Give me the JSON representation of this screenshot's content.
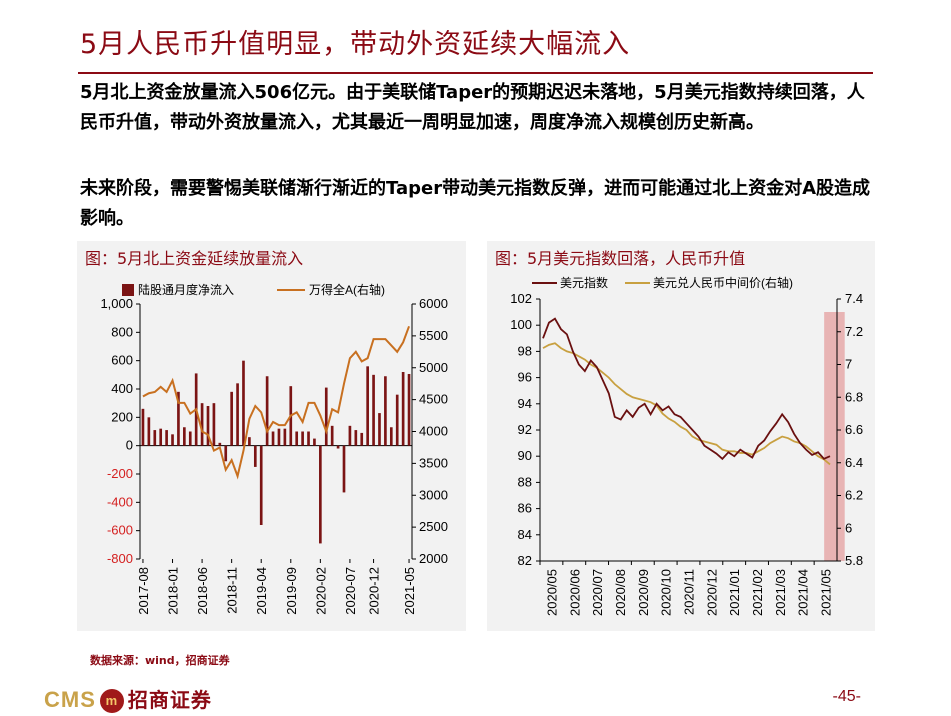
{
  "title": "5月人民币升值明显，带动外资延续大幅流入",
  "paragraphs": [
    "5月北上资金放量流入506亿元。由于美联储Taper的预期迟迟未落地，5月美元指数持续回落，人民币升值，带动外资放量流入，尤其最近一周明显加速，周度净流入规模创历史新高。",
    "未来阶段，需要警惕美联储渐行渐近的Taper带动美元指数反弹，进而可能通过北上资金对A股造成影响。"
  ],
  "source": "数据来源：wind，招商证券",
  "footer": {
    "logo_text": "CMS",
    "logo_badge": "m",
    "logo_cn": "招商证券",
    "page": "-45-"
  },
  "colors": {
    "accent": "#8b0a14",
    "bar": "#7b1414",
    "line_orange": "#c87020",
    "line_usd": "#6a1010",
    "line_cny": "#c8a040",
    "highlight": "#e8b4b4"
  },
  "chart_data": [
    {
      "type": "bar",
      "panel_title": "图：5月北上资金延续放量流入",
      "legend": [
        "陆股通月度净流入",
        "万得全A(右轴)"
      ],
      "x_tick_labels": [
        "2017-08",
        "2018-01",
        "2018-06",
        "2018-11",
        "2019-04",
        "2019-09",
        "2020-02",
        "2020-07",
        "2020-12",
        "2021-05"
      ],
      "categories": [
        "2017-08",
        "2017-09",
        "2017-10",
        "2017-11",
        "2017-12",
        "2018-01",
        "2018-02",
        "2018-03",
        "2018-04",
        "2018-05",
        "2018-06",
        "2018-07",
        "2018-08",
        "2018-09",
        "2018-10",
        "2018-11",
        "2018-12",
        "2019-01",
        "2019-02",
        "2019-03",
        "2019-04",
        "2019-05",
        "2019-06",
        "2019-07",
        "2019-08",
        "2019-09",
        "2019-10",
        "2019-11",
        "2019-12",
        "2020-01",
        "2020-02",
        "2020-03",
        "2020-04",
        "2020-05",
        "2020-06",
        "2020-07",
        "2020-08",
        "2020-09",
        "2020-10",
        "2020-12",
        "2020-11",
        "2021-01",
        "2021-02",
        "2021-03",
        "2021-04",
        "2021-05"
      ],
      "series": [
        {
          "name": "陆股通月度净流入",
          "axis": "left",
          "values": [
            260,
            200,
            110,
            120,
            110,
            80,
            380,
            130,
            100,
            510,
            300,
            280,
            300,
            20,
            -110,
            380,
            440,
            600,
            60,
            -150,
            -560,
            490,
            100,
            120,
            120,
            420,
            100,
            100,
            100,
            50,
            -690,
            410,
            140,
            -20,
            -330,
            140,
            110,
            90,
            560,
            500,
            230,
            490,
            130,
            360,
            520,
            506
          ]
        },
        {
          "name": "万得全A(右轴)",
          "axis": "right",
          "values": [
            4550,
            4600,
            4620,
            4700,
            4620,
            4800,
            4450,
            4450,
            4280,
            4350,
            4000,
            3950,
            3700,
            3750,
            3400,
            3550,
            3300,
            3700,
            4200,
            4400,
            4300,
            4000,
            4150,
            4100,
            4100,
            4250,
            4300,
            4150,
            4450,
            4450,
            4250,
            4000,
            4350,
            4300,
            4750,
            5150,
            5250,
            5100,
            5150,
            5450,
            5450,
            5450,
            5350,
            5250,
            5400,
            5650
          ]
        }
      ],
      "ylim_left": [
        -800,
        1000
      ],
      "ylim_right": [
        2000,
        6000
      ],
      "yticks_left": [
        "1,000",
        "800",
        "600",
        "400",
        "200",
        "0",
        "-200",
        "-400",
        "-600",
        "-800"
      ],
      "yticks_right": [
        "6000",
        "5500",
        "5000",
        "4500",
        "4000",
        "3500",
        "3000",
        "2500",
        "2000"
      ]
    },
    {
      "type": "line",
      "panel_title": "图：5月美元指数回落，人民币升值",
      "legend": [
        "美元指数",
        "美元兑人民币中间价(右轴)"
      ],
      "x_tick_labels": [
        "2020/05",
        "2020/06",
        "2020/07",
        "2020/08",
        "2020/09",
        "2020/10",
        "2020/11",
        "2020/12",
        "2021/01",
        "2021/02",
        "2021/03",
        "2021/04",
        "2021/05"
      ],
      "series": [
        {
          "name": "美元指数",
          "axis": "left",
          "values": [
            99.0,
            100.2,
            100.5,
            99.7,
            99.3,
            98.0,
            97.0,
            96.5,
            97.3,
            96.8,
            95.8,
            94.8,
            93.0,
            92.8,
            93.5,
            93.0,
            93.7,
            94.0,
            93.2,
            94.0,
            93.5,
            93.8,
            93.2,
            93.0,
            92.5,
            92.0,
            91.5,
            90.8,
            90.5,
            90.2,
            89.8,
            90.3,
            90.0,
            90.5,
            90.2,
            89.9,
            90.8,
            91.2,
            91.9,
            92.5,
            93.2,
            92.6,
            91.7,
            91.0,
            90.5,
            90.1,
            90.3,
            89.8,
            90.0
          ]
        },
        {
          "name": "美元兑人民币中间价(右轴)",
          "axis": "right",
          "values": [
            7.1,
            7.12,
            7.13,
            7.1,
            7.08,
            7.07,
            7.05,
            7.03,
            7.0,
            6.98,
            6.95,
            6.92,
            6.88,
            6.85,
            6.82,
            6.8,
            6.79,
            6.78,
            6.77,
            6.75,
            6.7,
            6.67,
            6.65,
            6.62,
            6.6,
            6.56,
            6.54,
            6.53,
            6.52,
            6.51,
            6.48,
            6.47,
            6.47,
            6.46,
            6.46,
            6.45,
            6.47,
            6.49,
            6.52,
            6.54,
            6.56,
            6.55,
            6.53,
            6.52,
            6.5,
            6.47,
            6.44,
            6.42,
            6.39
          ]
        }
      ],
      "ylim_left": [
        82,
        102
      ],
      "ylim_right": [
        5.8,
        7.4
      ],
      "yticks_left": [
        "102",
        "100",
        "98",
        "96",
        "94",
        "92",
        "90",
        "88",
        "86",
        "84",
        "82"
      ],
      "yticks_right": [
        "7.4",
        "7.2",
        "7",
        "6.8",
        "6.6",
        "6.4",
        "6.2",
        "6",
        "5.8"
      ],
      "highlight_period": "2021/05"
    }
  ]
}
